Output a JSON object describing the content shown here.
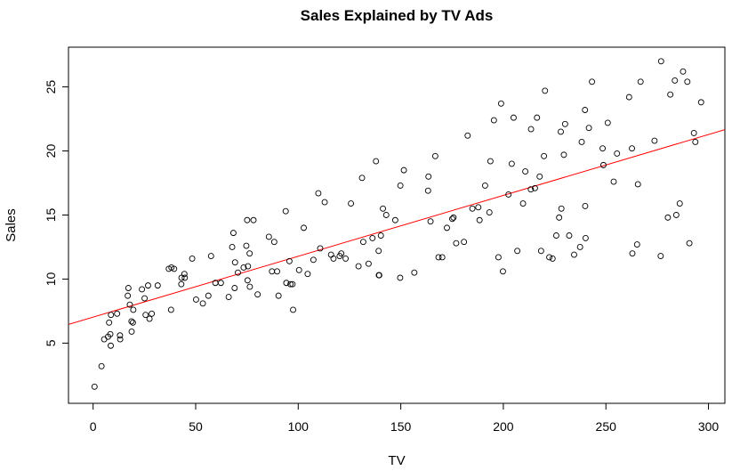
{
  "chart_data": {
    "type": "scatter",
    "title": "Sales Explained by TV Ads",
    "xlabel": "TV",
    "ylabel": "Sales",
    "xlim": [
      -12,
      308
    ],
    "ylim": [
      0.3,
      28.1
    ],
    "x_ticks": [
      0,
      50,
      100,
      150,
      200,
      250,
      300
    ],
    "y_ticks": [
      5,
      10,
      15,
      20,
      25
    ],
    "grid": false,
    "fit_line": {
      "intercept": 7.03,
      "slope": 0.0475,
      "color": "#ff0000"
    },
    "points": [
      [
        0.7,
        1.6
      ],
      [
        4.1,
        3.2
      ],
      [
        5.4,
        5.3
      ],
      [
        7.3,
        5.5
      ],
      [
        7.8,
        6.6
      ],
      [
        8.4,
        5.7
      ],
      [
        8.6,
        4.8
      ],
      [
        8.7,
        7.2
      ],
      [
        11.7,
        7.3
      ],
      [
        13.1,
        5.6
      ],
      [
        13.2,
        5.3
      ],
      [
        16.9,
        8.7
      ],
      [
        17.2,
        9.3
      ],
      [
        17.9,
        8.0
      ],
      [
        18.7,
        6.7
      ],
      [
        18.8,
        5.9
      ],
      [
        19.4,
        6.6
      ],
      [
        19.6,
        7.6
      ],
      [
        23.8,
        9.2
      ],
      [
        25.1,
        8.5
      ],
      [
        25.6,
        7.2
      ],
      [
        26.8,
        9.5
      ],
      [
        27.5,
        6.9
      ],
      [
        28.6,
        7.3
      ],
      [
        31.5,
        9.5
      ],
      [
        36.9,
        10.8
      ],
      [
        38.0,
        7.6
      ],
      [
        38.2,
        10.9
      ],
      [
        39.5,
        10.8
      ],
      [
        43.0,
        9.6
      ],
      [
        43.1,
        10.1
      ],
      [
        44.5,
        10.4
      ],
      [
        44.7,
        10.1
      ],
      [
        48.3,
        11.6
      ],
      [
        50.2,
        8.4
      ],
      [
        53.5,
        8.1
      ],
      [
        56.2,
        8.7
      ],
      [
        57.5,
        11.8
      ],
      [
        59.6,
        9.7
      ],
      [
        62.3,
        9.7
      ],
      [
        66.1,
        8.6
      ],
      [
        67.8,
        12.5
      ],
      [
        68.4,
        13.6
      ],
      [
        69.0,
        9.3
      ],
      [
        69.2,
        11.3
      ],
      [
        70.6,
        10.5
      ],
      [
        73.4,
        10.9
      ],
      [
        74.7,
        12.6
      ],
      [
        75.1,
        14.6
      ],
      [
        75.3,
        9.9
      ],
      [
        75.5,
        11.0
      ],
      [
        76.3,
        12.0
      ],
      [
        76.4,
        9.4
      ],
      [
        78.2,
        14.6
      ],
      [
        80.2,
        8.8
      ],
      [
        85.7,
        13.3
      ],
      [
        87.2,
        10.6
      ],
      [
        88.3,
        12.9
      ],
      [
        89.7,
        10.6
      ],
      [
        90.4,
        8.7
      ],
      [
        93.9,
        15.3
      ],
      [
        94.2,
        9.7
      ],
      [
        95.7,
        11.4
      ],
      [
        96.2,
        9.6
      ],
      [
        97.2,
        9.6
      ],
      [
        97.5,
        7.6
      ],
      [
        100.4,
        10.7
      ],
      [
        102.7,
        14.0
      ],
      [
        104.6,
        10.4
      ],
      [
        107.4,
        11.5
      ],
      [
        109.8,
        16.7
      ],
      [
        110.7,
        12.4
      ],
      [
        112.9,
        16.0
      ],
      [
        116.0,
        11.9
      ],
      [
        117.2,
        11.6
      ],
      [
        120.2,
        11.8
      ],
      [
        121.0,
        12.0
      ],
      [
        123.1,
        11.6
      ],
      [
        125.7,
        15.9
      ],
      [
        129.4,
        11.0
      ],
      [
        131.1,
        17.9
      ],
      [
        131.7,
        12.9
      ],
      [
        134.3,
        11.2
      ],
      [
        136.2,
        13.2
      ],
      [
        137.9,
        19.2
      ],
      [
        139.2,
        12.2
      ],
      [
        139.3,
        10.3
      ],
      [
        139.5,
        10.3
      ],
      [
        140.3,
        13.4
      ],
      [
        141.3,
        15.5
      ],
      [
        142.9,
        15.0
      ],
      [
        147.3,
        14.6
      ],
      [
        149.7,
        10.1
      ],
      [
        149.8,
        17.3
      ],
      [
        151.5,
        18.5
      ],
      [
        156.6,
        10.5
      ],
      [
        163.3,
        16.9
      ],
      [
        163.5,
        18.0
      ],
      [
        164.5,
        14.5
      ],
      [
        166.8,
        19.6
      ],
      [
        168.4,
        11.7
      ],
      [
        170.2,
        11.7
      ],
      [
        172.5,
        14.0
      ],
      [
        175.1,
        14.7
      ],
      [
        175.7,
        14.8
      ],
      [
        177.0,
        12.8
      ],
      [
        180.8,
        12.9
      ],
      [
        182.6,
        21.2
      ],
      [
        184.9,
        15.5
      ],
      [
        187.8,
        15.6
      ],
      [
        188.4,
        14.6
      ],
      [
        191.1,
        17.3
      ],
      [
        193.2,
        15.2
      ],
      [
        193.7,
        19.2
      ],
      [
        195.4,
        22.4
      ],
      [
        197.6,
        11.7
      ],
      [
        198.9,
        23.7
      ],
      [
        199.8,
        10.6
      ],
      [
        202.5,
        16.6
      ],
      [
        204.1,
        19.0
      ],
      [
        205.0,
        22.6
      ],
      [
        206.8,
        12.2
      ],
      [
        209.6,
        15.9
      ],
      [
        210.7,
        18.4
      ],
      [
        213.4,
        17.0
      ],
      [
        213.5,
        21.7
      ],
      [
        215.4,
        17.1
      ],
      [
        216.4,
        22.6
      ],
      [
        217.7,
        18.0
      ],
      [
        218.4,
        12.2
      ],
      [
        219.8,
        19.6
      ],
      [
        220.3,
        24.7
      ],
      [
        222.4,
        11.7
      ],
      [
        224.0,
        11.6
      ],
      [
        225.8,
        13.4
      ],
      [
        227.2,
        14.8
      ],
      [
        228.0,
        21.5
      ],
      [
        228.3,
        15.5
      ],
      [
        229.5,
        19.7
      ],
      [
        230.1,
        22.1
      ],
      [
        232.1,
        13.4
      ],
      [
        234.5,
        11.9
      ],
      [
        237.4,
        12.5
      ],
      [
        238.2,
        20.7
      ],
      [
        239.8,
        23.2
      ],
      [
        239.9,
        15.7
      ],
      [
        240.1,
        13.2
      ],
      [
        241.7,
        21.8
      ],
      [
        243.2,
        25.4
      ],
      [
        248.4,
        20.2
      ],
      [
        248.8,
        18.9
      ],
      [
        250.9,
        22.2
      ],
      [
        253.8,
        17.6
      ],
      [
        255.4,
        19.8
      ],
      [
        261.3,
        24.2
      ],
      [
        262.7,
        20.2
      ],
      [
        262.9,
        12.0
      ],
      [
        265.2,
        12.7
      ],
      [
        265.6,
        17.4
      ],
      [
        266.9,
        25.4
      ],
      [
        273.7,
        20.8
      ],
      [
        276.7,
        11.8
      ],
      [
        276.9,
        27.0
      ],
      [
        280.2,
        14.8
      ],
      [
        281.4,
        24.4
      ],
      [
        283.6,
        25.5
      ],
      [
        284.3,
        15.0
      ],
      [
        286.0,
        15.9
      ],
      [
        287.6,
        26.2
      ],
      [
        289.7,
        25.4
      ],
      [
        290.7,
        12.8
      ],
      [
        292.9,
        21.4
      ],
      [
        293.6,
        20.7
      ],
      [
        296.4,
        23.8
      ]
    ]
  }
}
